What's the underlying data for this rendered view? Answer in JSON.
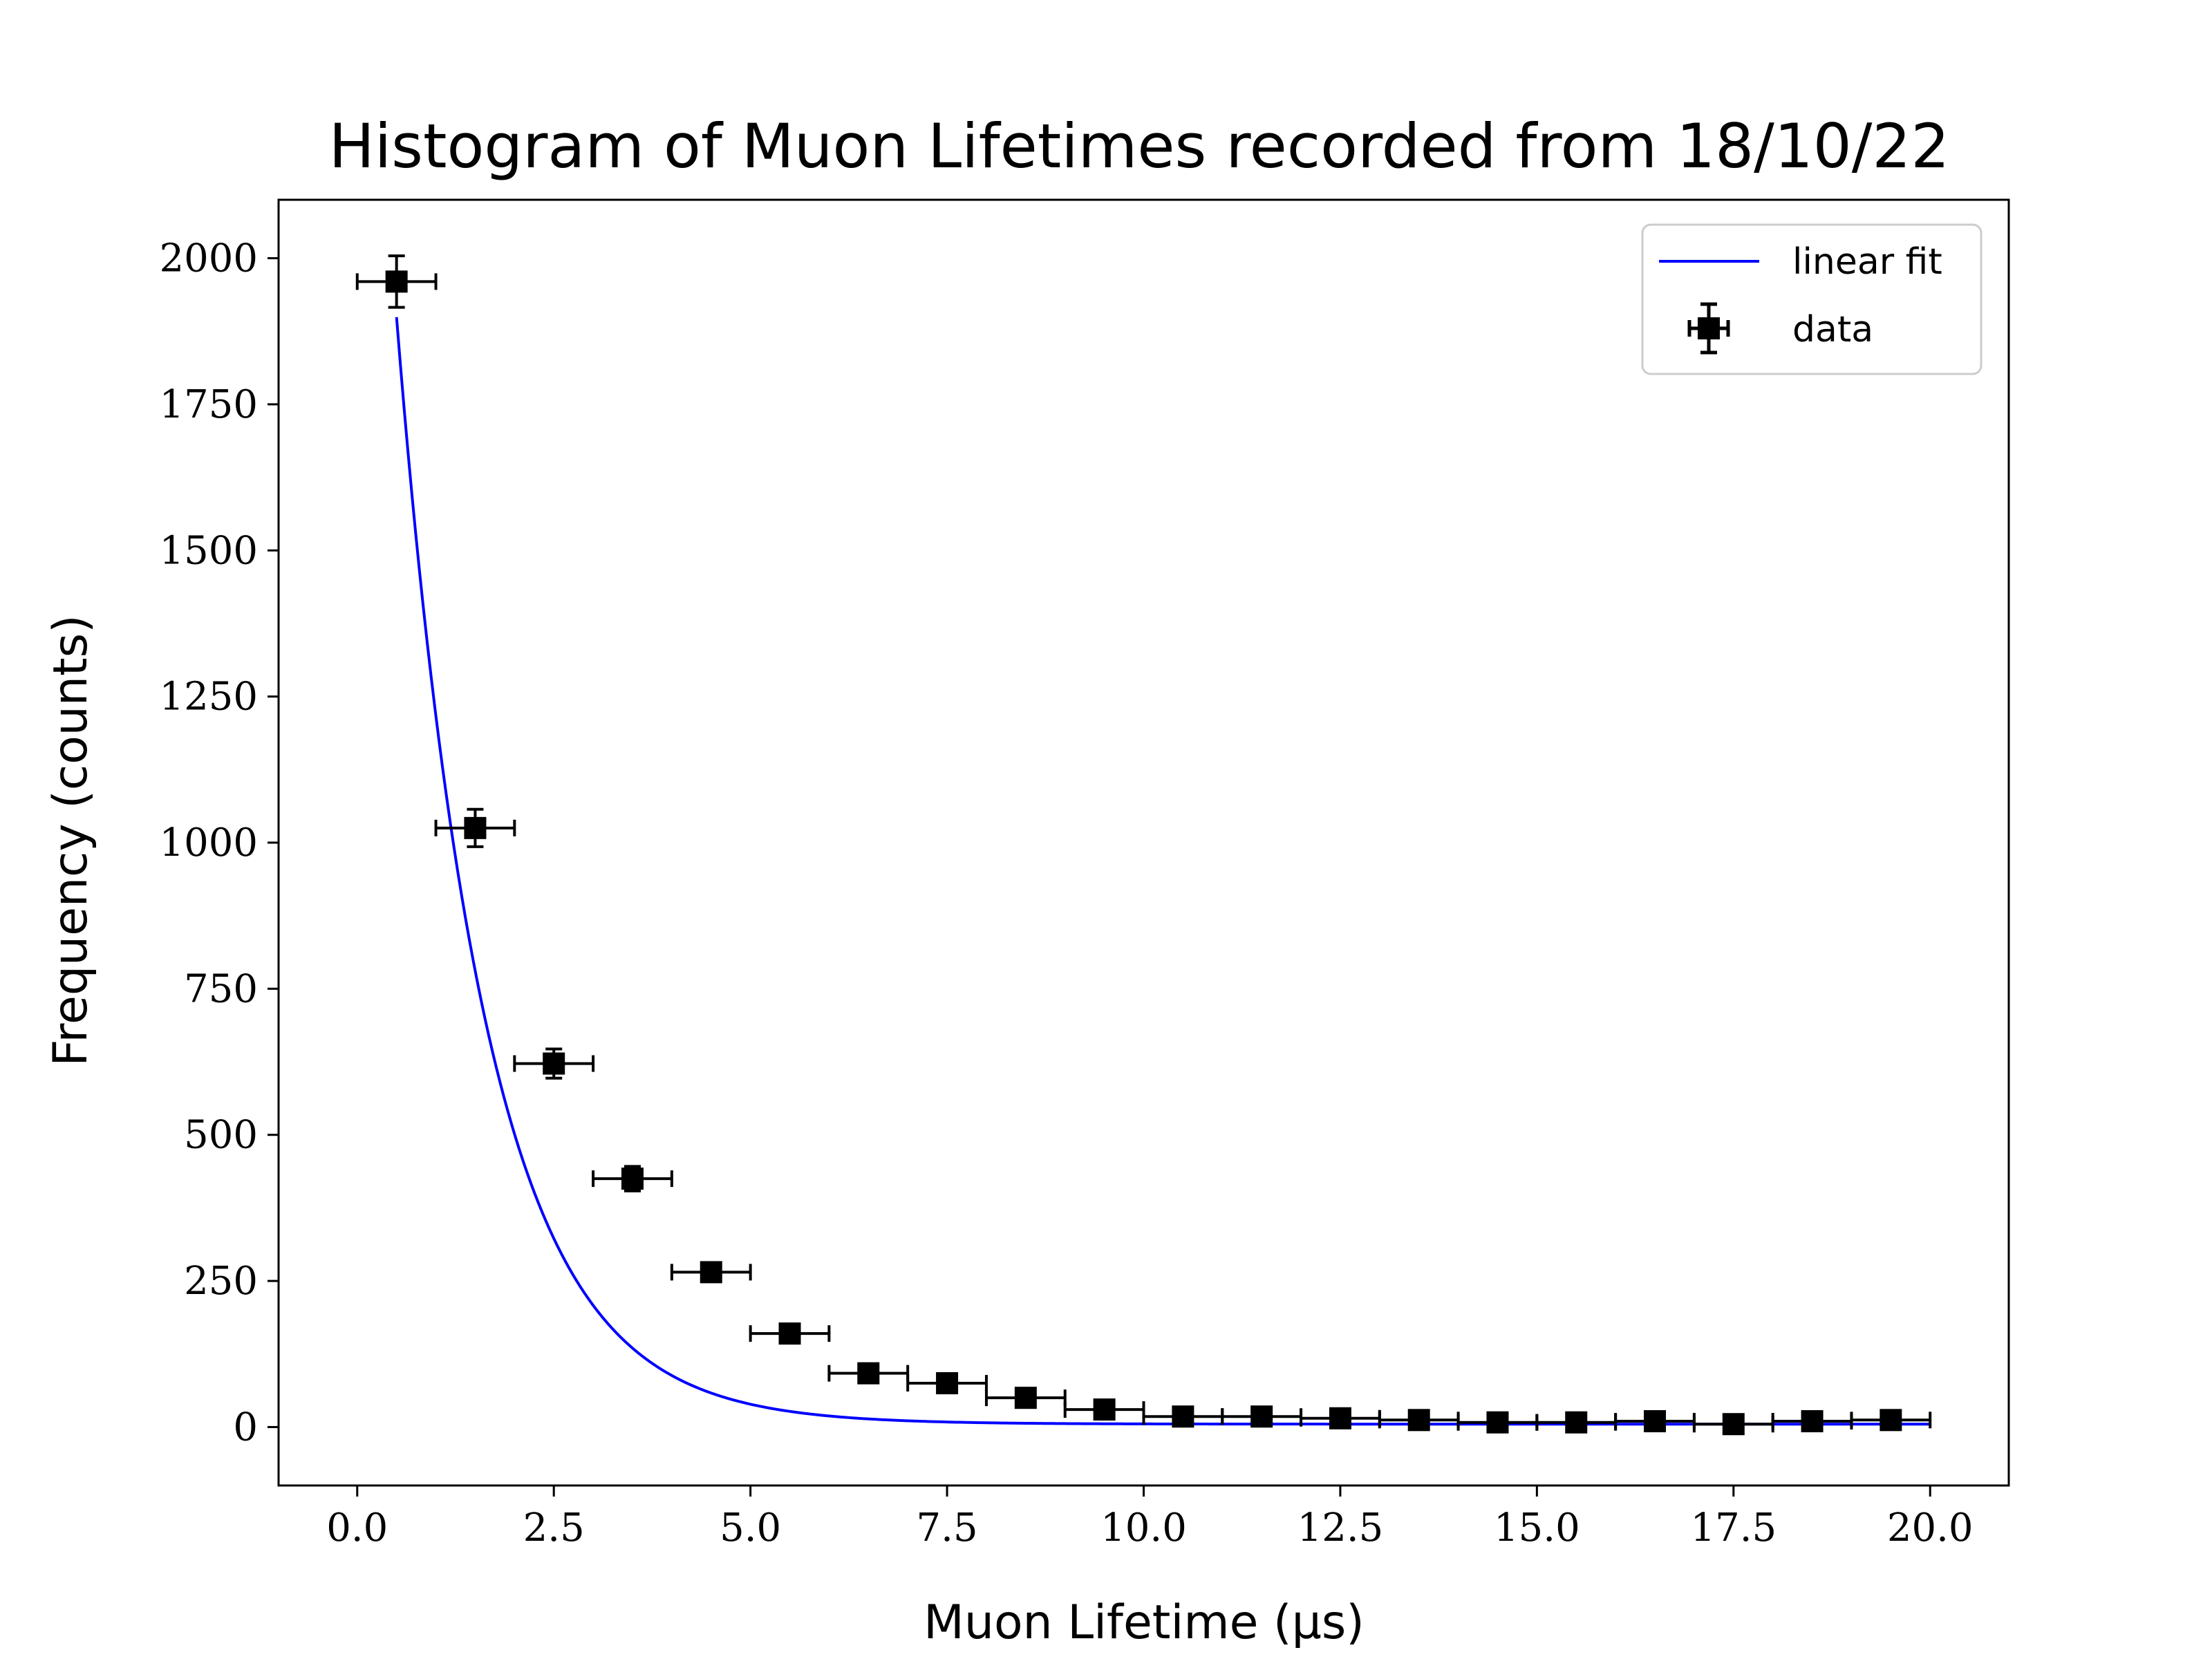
{
  "chart_data": {
    "type": "scatter",
    "title": "Histogram of Muon Lifetimes recorded from 18/10/22",
    "xlabel": "Muon Lifetime (µs)",
    "ylabel": "Frequency (counts)",
    "xlim": [
      -1.0,
      21.0
    ],
    "ylim": [
      -100,
      2100
    ],
    "x_ticks": [
      0.0,
      2.5,
      5.0,
      7.5,
      10.0,
      12.5,
      15.0,
      17.5,
      20.0
    ],
    "x_tick_labels": [
      "0.0",
      "2.5",
      "5.0",
      "7.5",
      "10.0",
      "12.5",
      "15.0",
      "17.5",
      "20.0"
    ],
    "y_ticks": [
      0,
      250,
      500,
      750,
      1000,
      1250,
      1500,
      1750,
      2000
    ],
    "y_tick_labels": [
      "0",
      "250",
      "500",
      "750",
      "1000",
      "1250",
      "1500",
      "1750",
      "2000"
    ],
    "grid": false,
    "legend_position": "top-right",
    "series": [
      {
        "name": "linear fit",
        "kind": "line",
        "color": "#0000ff",
        "model": "exponential_decay",
        "amplitude": 2960,
        "tau": 1.12,
        "offset": 5,
        "x_range": [
          0.5,
          20.0
        ]
      },
      {
        "name": "data",
        "kind": "errorbar",
        "color": "#000000",
        "marker": "square",
        "x": [
          0.5,
          1.5,
          2.5,
          3.5,
          4.5,
          5.5,
          6.5,
          7.5,
          8.5,
          9.5,
          10.5,
          11.5,
          12.5,
          13.5,
          14.5,
          15.5,
          16.5,
          17.5,
          18.5,
          19.5
        ],
        "y": [
          1960,
          1025,
          622,
          425,
          265,
          160,
          92,
          75,
          50,
          30,
          18,
          18,
          15,
          12,
          8,
          8,
          10,
          5,
          10,
          12
        ],
        "x_err": [
          0.5,
          0.5,
          0.5,
          0.5,
          0.5,
          0.5,
          0.5,
          0.5,
          0.5,
          0.5,
          0.5,
          0.5,
          0.5,
          0.5,
          0.5,
          0.5,
          0.5,
          0.5,
          0.5,
          0.5
        ],
        "y_err": [
          44,
          32,
          25,
          21,
          16,
          13,
          10,
          9,
          7,
          5,
          4,
          4,
          4,
          3,
          3,
          3,
          3,
          2,
          3,
          3
        ]
      }
    ]
  }
}
